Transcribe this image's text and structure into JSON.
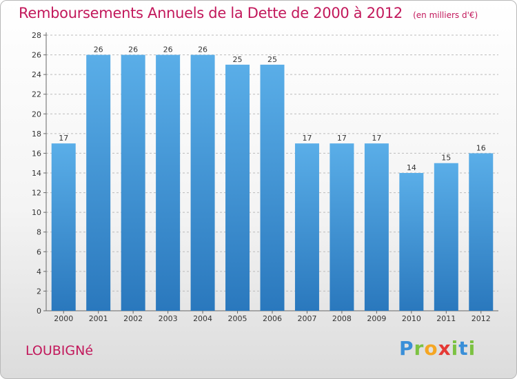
{
  "chart_data": {
    "type": "bar",
    "title": "Remboursements Annuels de la Dette de 2000 à 2012",
    "subtitle": "(en milliers d'€)",
    "categories": [
      "2000",
      "2001",
      "2002",
      "2003",
      "2004",
      "2005",
      "2006",
      "2007",
      "2008",
      "2009",
      "2010",
      "2011",
      "2012"
    ],
    "values": [
      17,
      26,
      26,
      26,
      26,
      25,
      25,
      17,
      17,
      17,
      14,
      15,
      16
    ],
    "data_labels": [
      "17",
      "26",
      "26",
      "26",
      "26",
      "25",
      "25",
      "17",
      "17",
      "17",
      "14",
      "15",
      "16"
    ],
    "xlabel": "",
    "ylabel": "",
    "ylim": [
      0,
      28
    ],
    "yticks": [
      0,
      2,
      4,
      6,
      8,
      10,
      12,
      14,
      16,
      18,
      20,
      22,
      24,
      26,
      28
    ],
    "grid": true,
    "legend": "none",
    "bar_color_top": "#5aaee8",
    "bar_color_bottom": "#2a78bd"
  },
  "footer": {
    "commune": "LOUBIGNé",
    "brand": "Proxiti",
    "brand_letters": [
      "P",
      "r",
      "o",
      "x",
      "i",
      "t",
      "i"
    ]
  },
  "colors": {
    "title": "#c2185b",
    "grid": "#bbbbbb"
  }
}
